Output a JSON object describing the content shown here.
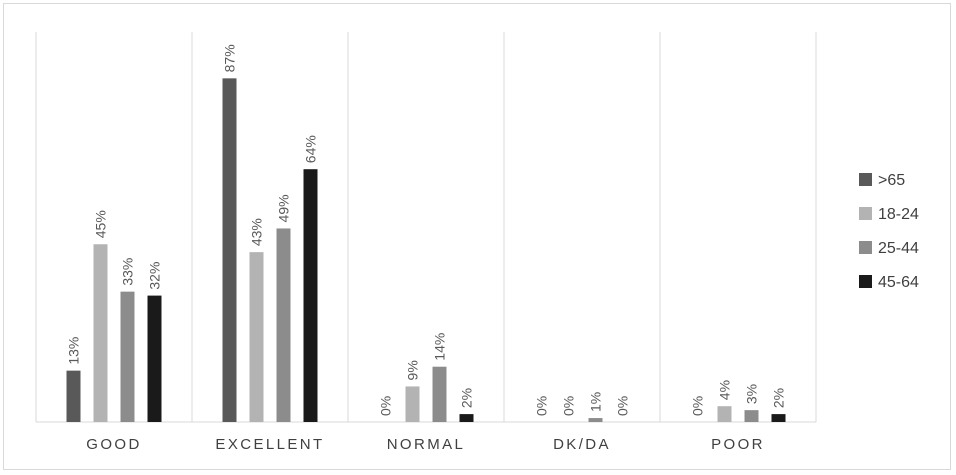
{
  "chart_data": {
    "type": "bar",
    "title": "",
    "xlabel": "",
    "ylabel": "",
    "ylim": [
      0,
      100
    ],
    "legend_position": "right",
    "grid": false,
    "category_separators": true,
    "categories": [
      "GOOD",
      "EXCELLENT",
      "NORMAL",
      "DK/DA",
      "POOR"
    ],
    "series": [
      {
        "name": ">65",
        "color": "#595959",
        "values": [
          13,
          87,
          0,
          0,
          0
        ]
      },
      {
        "name": "18-24",
        "color": "#b3b3b3",
        "values": [
          45,
          43,
          9,
          0,
          4
        ]
      },
      {
        "name": "25-44",
        "color": "#8c8c8c",
        "values": [
          33,
          49,
          14,
          1,
          3
        ]
      },
      {
        "name": "45-64",
        "color": "#1a1a1a",
        "values": [
          32,
          64,
          2,
          0,
          2
        ]
      }
    ],
    "value_format": "{v}%"
  }
}
